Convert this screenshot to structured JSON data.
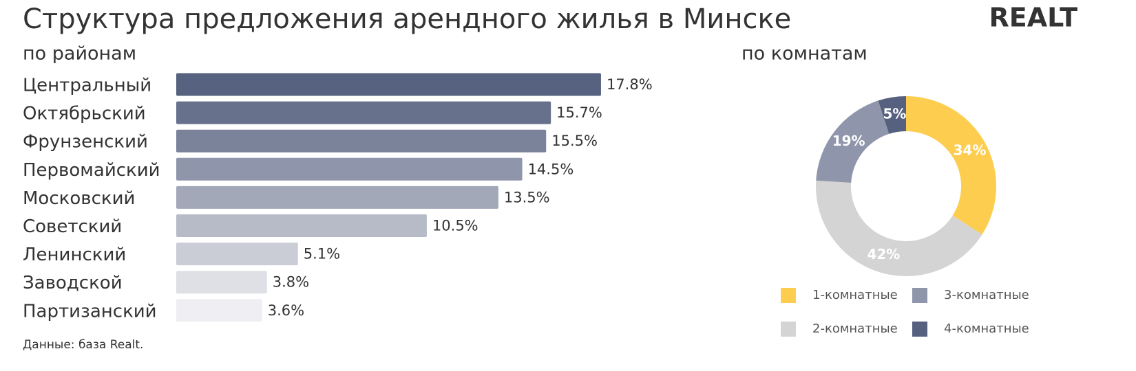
{
  "title": "Структура предложения арендного жилья в Минске",
  "logo": "REALT",
  "source": "Данные: база Realt.",
  "chart_data": [
    {
      "type": "bar",
      "subtitle": "по районам",
      "categories": [
        "Центральный",
        "Октябрьский",
        "Фрунзенский",
        "Первомайский",
        "Московский",
        "Советский",
        "Ленинский",
        "Заводской",
        "Партизанский"
      ],
      "values": [
        17.8,
        15.7,
        15.5,
        14.5,
        13.5,
        10.5,
        5.1,
        3.8,
        3.6
      ],
      "value_labels": [
        "17.8%",
        "15.7%",
        "15.5%",
        "14.5%",
        "13.5%",
        "10.5%",
        "5.1%",
        "3.8%",
        "3.6%"
      ],
      "colors": [
        "#56627f",
        "#67718c",
        "#7b839b",
        "#8f96ab",
        "#a3a8b9",
        "#b7bbc8",
        "#cbcdd6",
        "#dfe0e6",
        "#efeff3"
      ]
    },
    {
      "type": "donut",
      "subtitle": "по комнатам",
      "categories": [
        "1-комнатные",
        "2-комнатные",
        "3-комнатные",
        "4-комнатные"
      ],
      "values": [
        34,
        42,
        19,
        5
      ],
      "value_labels": [
        "34%",
        "42%",
        "19%",
        "5%"
      ],
      "colors": [
        "#fdcd4f",
        "#d4d4d4",
        "#8f95aa",
        "#56617f"
      ],
      "legend": "bottom"
    }
  ]
}
